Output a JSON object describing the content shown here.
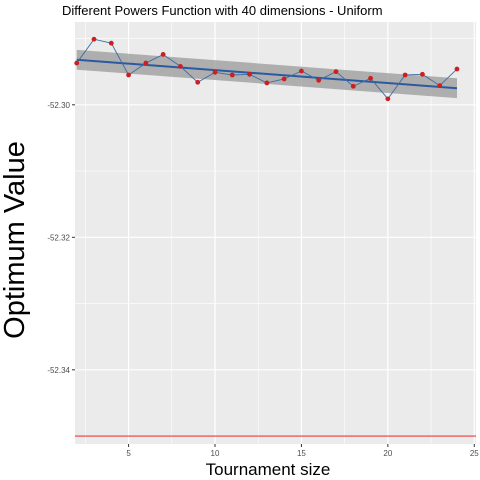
{
  "chart_data": {
    "type": "line",
    "title": "Different Powers Function with 40 dimensions -  Uniform",
    "xlabel": "Tournament size",
    "ylabel": "Optimum Value",
    "xlim": [
      1.9,
      25.1
    ],
    "ylim": [
      -52.3512,
      -52.2875
    ],
    "x_ticks": [
      5,
      10,
      15,
      20,
      25
    ],
    "x_tick_labels": [
      "5",
      "10",
      "15",
      "20",
      "25"
    ],
    "y_ticks": [
      -52.3,
      -52.32,
      -52.34
    ],
    "y_tick_labels": [
      "-52.30",
      "-52.32",
      "-52.34"
    ],
    "grid": true,
    "series": [
      {
        "kind": "points",
        "x": [
          2,
          3,
          4,
          5,
          6,
          7,
          8,
          9,
          10,
          11,
          12,
          13,
          14,
          15,
          16,
          17,
          18,
          19,
          20,
          21,
          22,
          23,
          24
        ],
        "y": [
          -52.2937,
          -52.2901,
          -52.2907,
          -52.2955,
          -52.2937,
          -52.2924,
          -52.2942,
          -52.2966,
          -52.2951,
          -52.2955,
          -52.2954,
          -52.2967,
          -52.2961,
          -52.2949,
          -52.2963,
          -52.295,
          -52.2972,
          -52.296,
          -52.2991,
          -52.2955,
          -52.2954,
          -52.2971,
          -52.2946
        ],
        "point_color": "#cc1f1f",
        "line_color": "#3a6ea5"
      }
    ],
    "trend": {
      "kind": "linear-fit",
      "x_start": 2,
      "x_end": 24,
      "y_start": -52.2932,
      "y_end": -52.2975,
      "band_halfwidth": 0.0015,
      "line_color": "#2c5aa0",
      "band_color": "#999999"
    },
    "reference_line": {
      "y": -52.35,
      "color": "#ee3b3b"
    },
    "panel_color": "#ebebeb",
    "grid_color": "#ffffff"
  }
}
